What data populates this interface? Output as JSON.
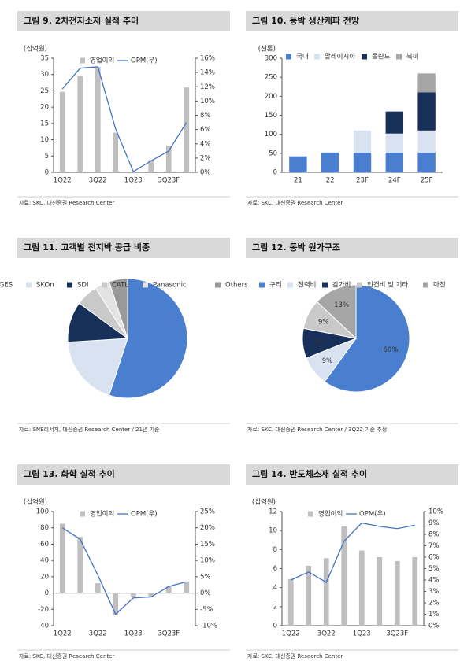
{
  "chart_data": [
    {
      "type": "bar",
      "title": "그림 9. 2차전지소재 실적 추이",
      "source": "자료: SKC, 대신증권 Research Center",
      "y_label": "(십억원)",
      "categories": [
        "1Q22",
        null,
        "3Q22",
        null,
        "1Q23",
        null,
        "3Q23F",
        null
      ],
      "series": [
        {
          "name": "영업이익",
          "type": "bar",
          "color": "#bfbfbf",
          "values": [
            24.7,
            29.6,
            32.3,
            12.2,
            0.2,
            3.8,
            8.2,
            26.0
          ]
        },
        {
          "name": "OPM(우)",
          "type": "line",
          "axis": "y2",
          "color": "#4472c4",
          "values": [
            11.7,
            14.6,
            14.8,
            6.1,
            0.1,
            1.6,
            3.0,
            7.0
          ]
        }
      ],
      "ylim": [
        0,
        35
      ],
      "yticks": [
        0,
        5,
        10,
        15,
        20,
        25,
        30,
        35
      ],
      "y2lim": [
        0,
        16
      ],
      "y2ticks": [
        {
          "value": 0,
          "label": "0%"
        },
        {
          "value": 2,
          "label": "2%"
        },
        {
          "value": 4,
          "label": "4%"
        },
        {
          "value": 6,
          "label": "6%"
        },
        {
          "value": 8,
          "label": "8%"
        },
        {
          "value": 10,
          "label": "10%"
        },
        {
          "value": 12,
          "label": "12%"
        },
        {
          "value": 14,
          "label": "14%"
        },
        {
          "value": 16,
          "label": "16%"
        }
      ]
    },
    {
      "type": "bar",
      "stacked": true,
      "title": "그림 10. 동박 생산캐파 전망",
      "source": "자료: SKC, 대신증권 Research Center",
      "y_label": "(천톤)",
      "categories": [
        "21",
        "22",
        "23F",
        "24F",
        "25F"
      ],
      "series": [
        {
          "name": "국내",
          "type": "bar",
          "color": "#4a7fd0",
          "values": [
            42,
            52,
            52,
            52,
            52
          ]
        },
        {
          "name": "말레이시아",
          "type": "bar",
          "color": "#d9e2f1",
          "values": [
            0,
            0,
            58,
            50,
            58
          ]
        },
        {
          "name": "폴란드",
          "type": "bar",
          "color": "#17305a",
          "values": [
            0,
            0,
            0,
            58,
            100
          ]
        },
        {
          "name": "북미",
          "type": "bar",
          "color": "#a6a6a6",
          "values": [
            0,
            0,
            0,
            0,
            50
          ]
        }
      ],
      "ylim": [
        0,
        300
      ],
      "yticks": [
        0,
        50,
        100,
        150,
        200,
        250,
        300
      ]
    },
    {
      "type": "pie",
      "title": "그림 11. 고객별 전지박 공급 비중",
      "source": "자료: SNE리서치, 대신증권 Research Center / 21년 기준",
      "categories": [
        "LGES",
        "SKOn",
        "SDI",
        "CATL",
        "Panasonic",
        "Others"
      ],
      "values": [
        55,
        19,
        11,
        6,
        4,
        5
      ],
      "colors": [
        "#4a7fd0",
        "#d9e2f1",
        "#17305a",
        "#c9c9c9",
        "#e3e3e3",
        "#999999"
      ]
    },
    {
      "type": "pie",
      "title": "그림 12. 동박 원가구조",
      "source": "자료: SKC, 대신증권 Research Center / 3Q22 기준 추정",
      "categories": [
        "구리",
        "전력비",
        "감가비",
        "인건비 및 기타",
        "마진"
      ],
      "values": [
        60,
        9,
        9,
        9,
        13
      ],
      "value_labels": [
        "60%",
        "9%",
        "9%",
        "9%",
        "13%"
      ],
      "colors": [
        "#4a7fd0",
        "#d9e2f1",
        "#17305a",
        "#c9c9c9",
        "#a6a6a6"
      ]
    },
    {
      "type": "bar",
      "title": "그림 13. 화학 실적 추이",
      "source": "자료: SKC, 대신증권 Research Center",
      "y_label": "(십억원)",
      "categories": [
        "1Q22",
        null,
        "3Q22",
        null,
        "1Q23",
        null,
        "3Q23F",
        null
      ],
      "series": [
        {
          "name": "영업이익",
          "type": "bar",
          "color": "#bfbfbf",
          "values": [
            85,
            69,
            12,
            -27,
            -5,
            -5,
            8,
            14
          ]
        },
        {
          "name": "OPM(우)",
          "type": "line",
          "axis": "y2",
          "color": "#4472c4",
          "values": [
            20,
            16.5,
            5.5,
            -6.5,
            -1.5,
            -1.2,
            2,
            3.5
          ]
        }
      ],
      "ylim": [
        -40,
        100
      ],
      "yticks": [
        -40,
        -20,
        0,
        20,
        40,
        60,
        80,
        100
      ],
      "y2lim": [
        -10,
        25
      ],
      "y2ticks": [
        {
          "value": -10,
          "label": "-10%"
        },
        {
          "value": -5,
          "label": "-5%"
        },
        {
          "value": 0,
          "label": "0%"
        },
        {
          "value": 5,
          "label": "5%"
        },
        {
          "value": 10,
          "label": "10%"
        },
        {
          "value": 15,
          "label": "15%"
        },
        {
          "value": 20,
          "label": "20%"
        },
        {
          "value": 25,
          "label": "25%"
        }
      ]
    },
    {
      "type": "bar",
      "title": "그림 14. 반도체소재 실적 추이",
      "source": "자료: SKC, 대신증권 Research Center",
      "y_label": "(십억원)",
      "categories": [
        "1Q22",
        null,
        "3Q22",
        null,
        "1Q23",
        null,
        "3Q23F",
        null
      ],
      "series": [
        {
          "name": "영업이익",
          "type": "bar",
          "color": "#bfbfbf",
          "values": [
            4.9,
            6.3,
            7.1,
            10.5,
            7.9,
            7.2,
            6.8,
            7.2
          ]
        },
        {
          "name": "OPM(우)",
          "type": "line",
          "axis": "y2",
          "color": "#4472c4",
          "values": [
            4.0,
            4.7,
            3.8,
            7.4,
            9.0,
            8.7,
            8.5,
            8.8
          ]
        }
      ],
      "ylim": [
        0,
        12
      ],
      "yticks": [
        0,
        2,
        4,
        6,
        8,
        10,
        12
      ],
      "y2lim": [
        0,
        10
      ],
      "y2ticks": [
        {
          "value": 0,
          "label": "0%"
        },
        {
          "value": 1,
          "label": "1%"
        },
        {
          "value": 2,
          "label": "2%"
        },
        {
          "value": 3,
          "label": "3%"
        },
        {
          "value": 4,
          "label": "4%"
        },
        {
          "value": 5,
          "label": "5%"
        },
        {
          "value": 6,
          "label": "6%"
        },
        {
          "value": 7,
          "label": "7%"
        },
        {
          "value": 8,
          "label": "8%"
        },
        {
          "value": 9,
          "label": "9%"
        },
        {
          "value": 10,
          "label": "10%"
        }
      ]
    }
  ]
}
